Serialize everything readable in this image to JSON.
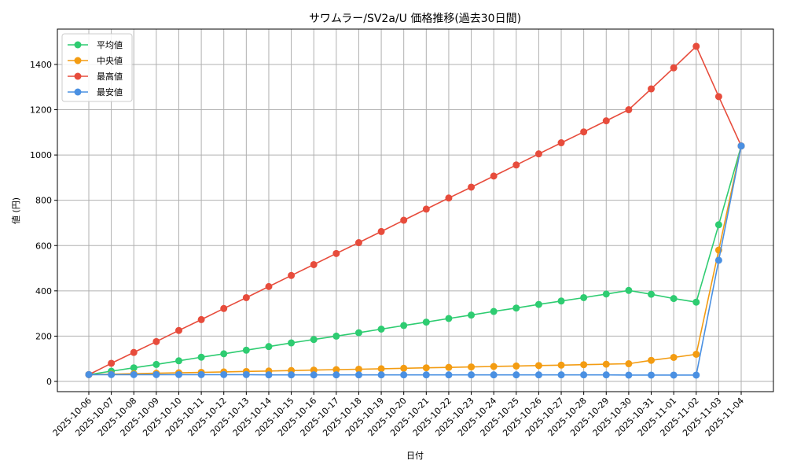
{
  "chart_data": {
    "type": "line",
    "title": "サワムラー/SV2a/U 価格推移(過去30日間)",
    "xlabel": "日付",
    "ylabel": "値 (円)",
    "ylim": [
      -50,
      1550
    ],
    "yticks": [
      0,
      200,
      400,
      600,
      800,
      1000,
      1200,
      1400
    ],
    "grid": true,
    "legend_position": "upper left",
    "categories": [
      "2025-10-06",
      "2025-10-07",
      "2025-10-08",
      "2025-10-09",
      "2025-10-10",
      "2025-10-11",
      "2025-10-12",
      "2025-10-13",
      "2025-10-14",
      "2025-10-15",
      "2025-10-16",
      "2025-10-17",
      "2025-10-18",
      "2025-10-19",
      "2025-10-20",
      "2025-10-21",
      "2025-10-22",
      "2025-10-23",
      "2025-10-24",
      "2025-10-25",
      "2025-10-26",
      "2025-10-27",
      "2025-10-28",
      "2025-10-29",
      "2025-10-30",
      "2025-10-31",
      "2025-11-01",
      "2025-11-02",
      "2025-11-03",
      "2025-11-04"
    ],
    "series": [
      {
        "name": "平均値",
        "color": "#2ecc71",
        "values": [
          30,
          45,
          60,
          75,
          91,
          107,
          122,
          138,
          154,
          170,
          185,
          200,
          215,
          231,
          247,
          262,
          278,
          293,
          309,
          324,
          340,
          355,
          370,
          386,
          402,
          385,
          366,
          350,
          692,
          1040
        ]
      },
      {
        "name": "中央値",
        "color": "#f39c12",
        "values": [
          30,
          32,
          34,
          36,
          38,
          40,
          42,
          44,
          46,
          48,
          50,
          52,
          54,
          56,
          58,
          60,
          62,
          64,
          66,
          68,
          70,
          72,
          74,
          76,
          78,
          93,
          106,
          120,
          580,
          1040
        ]
      },
      {
        "name": "最高値",
        "color": "#e74c3c",
        "values": [
          30,
          80,
          128,
          176,
          225,
          273,
          322,
          370,
          419,
          468,
          516,
          565,
          613,
          662,
          712,
          761,
          810,
          858,
          907,
          956,
          1005,
          1054,
          1102,
          1151,
          1200,
          1292,
          1385,
          1480,
          1258,
          1040
        ]
      },
      {
        "name": "最安値",
        "color": "#4a90e2",
        "values": [
          30,
          30,
          30,
          30,
          30,
          30,
          30,
          30,
          29,
          29,
          29,
          29,
          29,
          29,
          29,
          29,
          29,
          29,
          29,
          29,
          29,
          29,
          29,
          29,
          28,
          28,
          28,
          28,
          535,
          1040
        ]
      }
    ]
  }
}
